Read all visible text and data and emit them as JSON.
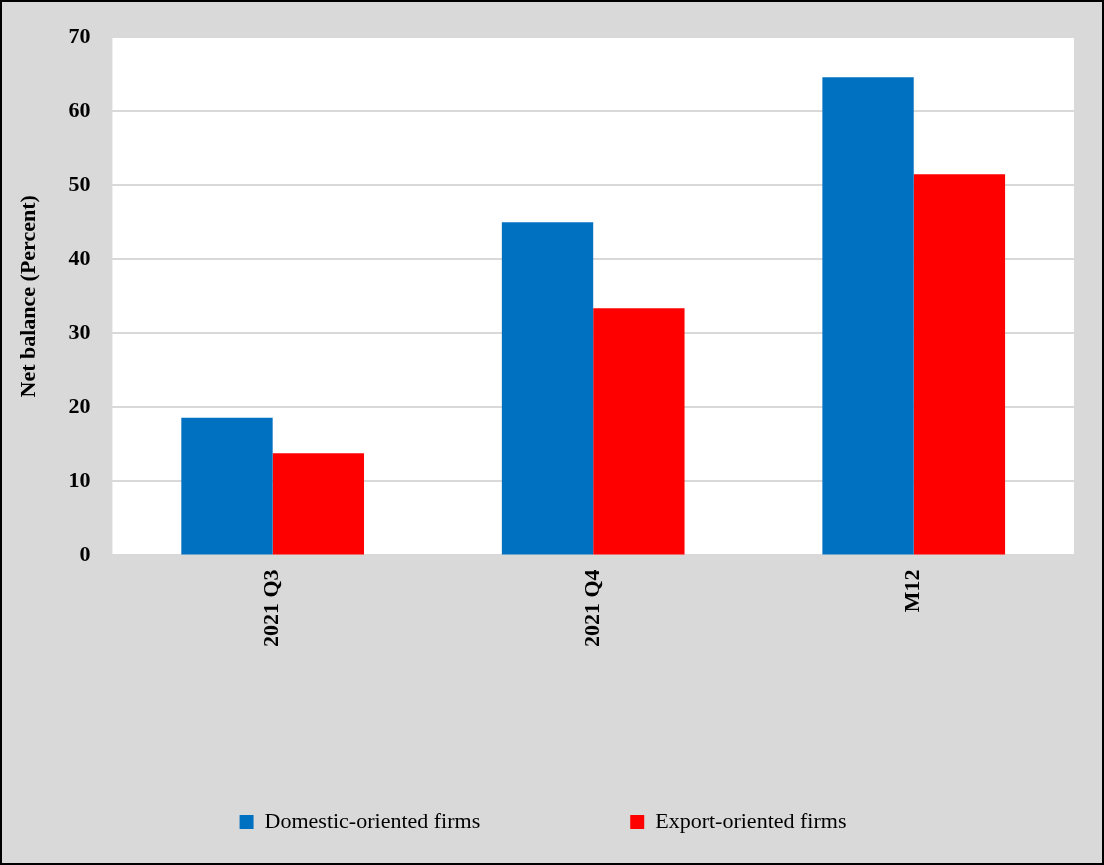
{
  "chart_data": {
    "type": "bar",
    "ylabel": "Net balance (Percent)",
    "categories": [
      "2021 Q3",
      "2021 Q4",
      "M12"
    ],
    "series": [
      {
        "name": "Domestic-oriented firms",
        "color": "#0070c0",
        "values": [
          18.6,
          45.0,
          64.6
        ]
      },
      {
        "name": "Export-oriented firms",
        "color": "#ff0000",
        "values": [
          13.8,
          33.4,
          51.5
        ]
      }
    ],
    "ylim": [
      0,
      70
    ],
    "yticks": [
      0,
      10,
      20,
      30,
      40,
      50,
      60,
      70
    ],
    "grid": "y",
    "legend": "bottom"
  }
}
